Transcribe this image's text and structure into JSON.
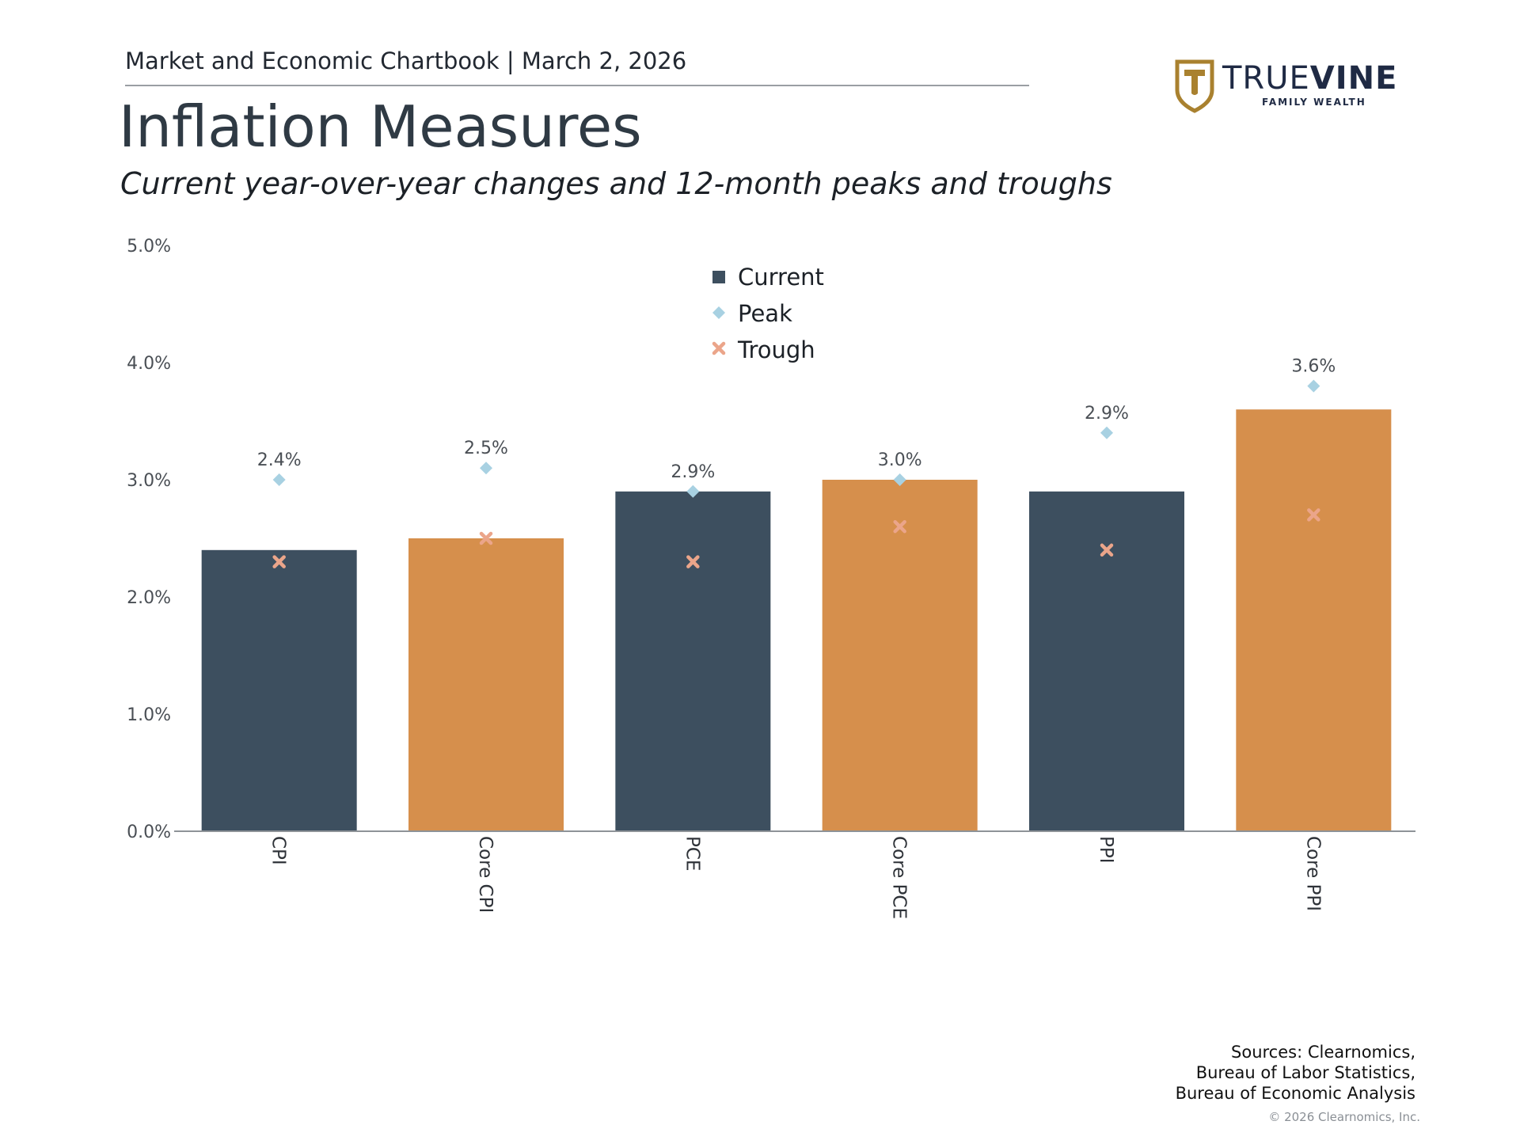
{
  "header": {
    "chartbook_line": "Market and Economic Chartbook | March 2, 2026",
    "title": "Inflation Measures",
    "subtitle": "Current year-over-year changes and 12-month peaks and troughs"
  },
  "logo": {
    "name_part1": "TRUE",
    "name_part2": "VINE",
    "tagline": "FAMILY WEALTH",
    "shield_color": "#a9812f",
    "text_color": "#1f2a44"
  },
  "chart_data": {
    "type": "bar",
    "categories": [
      "CPI",
      "Core CPI",
      "PCE",
      "Core PCE",
      "PPI",
      "Core PPI"
    ],
    "series": [
      {
        "name": "Current",
        "values": [
          2.4,
          2.5,
          2.9,
          3.0,
          2.9,
          3.6
        ]
      },
      {
        "name": "Peak",
        "values": [
          3.0,
          3.1,
          2.9,
          3.0,
          3.4,
          3.8
        ]
      },
      {
        "name": "Trough",
        "values": [
          2.3,
          2.5,
          2.3,
          2.6,
          2.4,
          2.7
        ]
      }
    ],
    "data_labels": [
      "2.4%",
      "2.5%",
      "2.9%",
      "3.0%",
      "2.9%",
      "3.6%"
    ],
    "ylim": [
      0,
      5
    ],
    "yticks": [
      0,
      1,
      2,
      3,
      4,
      5
    ],
    "ytick_labels": [
      "0.0%",
      "1.0%",
      "2.0%",
      "3.0%",
      "4.0%",
      "5.0%"
    ],
    "grid": false,
    "legend_placement": "top-center",
    "bar_colors": [
      "#3d4f5f",
      "#d68f4c",
      "#3d4f5f",
      "#d68f4c",
      "#3d4f5f",
      "#d68f4c"
    ],
    "marker_colors": {
      "Peak": "#a8d1e2",
      "Trough": "#eba58a"
    }
  },
  "footer": {
    "sources": [
      "Sources: Clearnomics,",
      "Bureau of Labor Statistics,",
      "Bureau of Economic Analysis"
    ],
    "copyright": "© 2026 Clearnomics, Inc."
  }
}
